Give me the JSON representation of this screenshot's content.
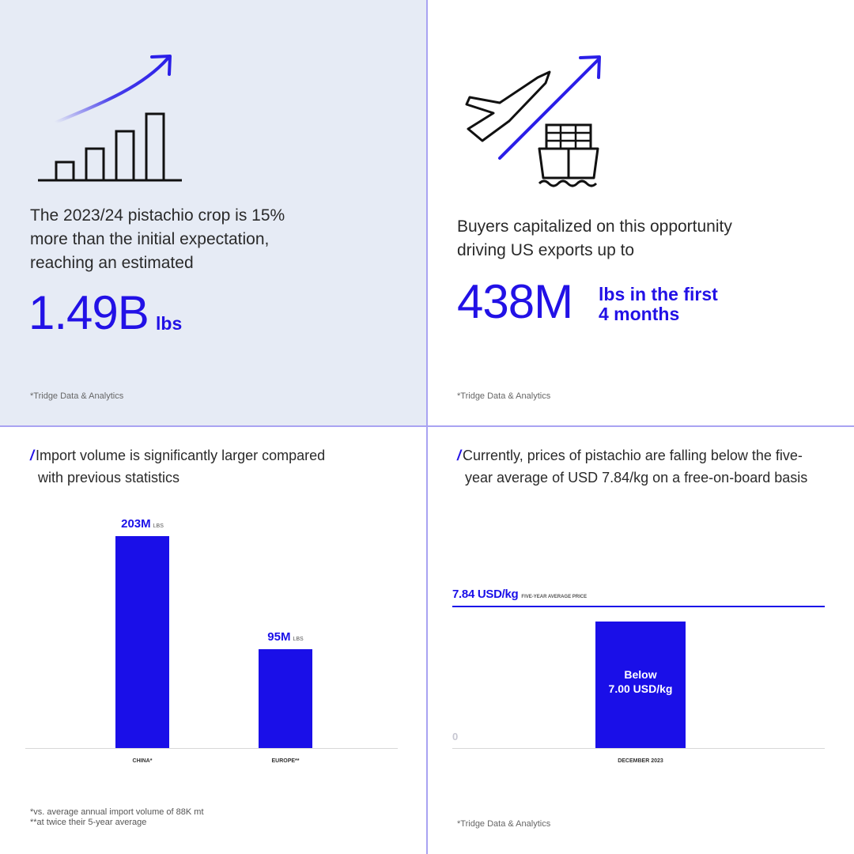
{
  "panel1": {
    "text": [
      "The 2023/24 pistachio crop is 15%",
      "more than the initial expectation,",
      "reaching an estimated"
    ],
    "big_value": "1.49B",
    "big_unit": "lbs",
    "source": "*Tridge Data & Analytics",
    "icon": "growth-bar-chart-icon"
  },
  "panel2": {
    "text": [
      "Buyers capitalized on this opportunity",
      "driving US exports up to"
    ],
    "big_value": "438M",
    "unit_lines": [
      "lbs in the first",
      "4 months"
    ],
    "source": "*Tridge Data & Analytics",
    "icon": "plane-ship-export-icon"
  },
  "panel3": {
    "slash": "/",
    "headline": [
      "Import volume is significantly larger compared",
      "with previous statistics"
    ],
    "footnotes": [
      "*vs. average annual import volume of 88K mt",
      "**at twice their 5-year average"
    ]
  },
  "panel4": {
    "slash": "/",
    "headline": [
      "Currently, prices of pistachio are falling below the five-",
      "year average of USD 7.84/kg on a free-on-board basis"
    ],
    "source": "*Tridge Data & Analytics"
  },
  "colors": {
    "accent": "#1a0fe8",
    "panel_bg": "#e6ebf5",
    "divider": "#a9a3f2"
  },
  "chart_data": [
    {
      "type": "bar",
      "categories": [
        "CHINA*",
        "EUROPE**"
      ],
      "values": [
        203,
        95
      ],
      "value_labels": [
        "203M",
        "95M"
      ],
      "unit_label": "LBS",
      "ylim": [
        0,
        240
      ],
      "grid": false
    },
    {
      "type": "bar",
      "categories": [
        "DECEMBER 2023"
      ],
      "values": [
        7.0
      ],
      "bar_label": [
        "Below",
        "7.00 USD/kg"
      ],
      "reference_line": {
        "value": 7.84,
        "label": "7.84 USD/kg",
        "note": "FIVE-YEAR AVERAGE PRICE"
      },
      "zero_label": "0",
      "ylim": [
        0,
        8.4
      ],
      "grid": false
    }
  ]
}
